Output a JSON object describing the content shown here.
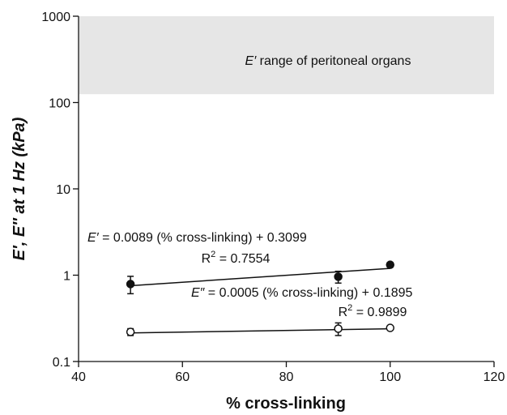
{
  "chart_data": {
    "type": "scatter",
    "xlabel": "% cross-linking",
    "ylabel": "E′, E″ at 1 Hz (kPa)",
    "xlim": [
      40,
      120
    ],
    "xticks": [
      40,
      60,
      80,
      100,
      120
    ],
    "ylim": [
      0.1,
      1000
    ],
    "yticks": [
      0.1,
      1,
      10,
      100,
      1000
    ],
    "log_y": true,
    "grid": false,
    "region": {
      "ylim": [
        125,
        1000
      ],
      "color": "#e6e6e6",
      "symbol": "E′",
      "label": "range of peritoneal organs"
    },
    "series": [
      {
        "name": "E′",
        "color": "#111111",
        "fill": "#111111",
        "x": [
          50,
          90,
          100
        ],
        "values": [
          0.79,
          0.96,
          1.32
        ],
        "errors": [
          0.18,
          0.15,
          0.08
        ],
        "fit": {
          "symbol": "E′",
          "eq": "=",
          "slope": 0.0089,
          "mid": "(% cross-linking) +",
          "intercept": 0.3099,
          "r2_prefix": "R",
          "r2_sup": "2",
          "r2_eq": "=",
          "r2": 0.7554
        }
      },
      {
        "name": "E″",
        "color": "#111111",
        "fill": "#ffffff",
        "x": [
          50,
          90,
          100
        ],
        "values": [
          0.22,
          0.24,
          0.245
        ],
        "errors": [
          0.02,
          0.04,
          0.01
        ],
        "fit": {
          "symbol": "E″",
          "eq": "=",
          "slope": 0.0005,
          "mid": "(% cross-linking) +",
          "intercept": 0.1895,
          "r2_prefix": "R",
          "r2_sup": "2",
          "r2_eq": "=",
          "r2": 0.9899
        }
      }
    ]
  }
}
